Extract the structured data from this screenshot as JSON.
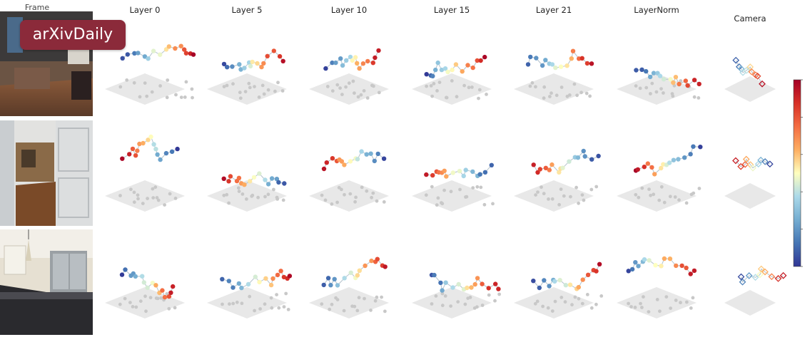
{
  "header": {
    "frame_label": "Frame",
    "column_titles": [
      "Layer 0",
      "Layer 5",
      "Layer 10",
      "Layer 15",
      "Layer 21",
      "LayerNorm",
      "Camera"
    ]
  },
  "badge": {
    "text": "arXivDaily"
  },
  "rows": [
    {
      "scene": "living-room"
    },
    {
      "scene": "hallway"
    },
    {
      "scene": "kitchen"
    }
  ],
  "colormap": {
    "stops": [
      "#313695",
      "#4575b4",
      "#74add1",
      "#abd9e9",
      "#ffffbf",
      "#fdae61",
      "#f46d43",
      "#d73027",
      "#a50026"
    ]
  },
  "colors": {
    "plane": "#e8e8e8",
    "shadow_point": "#c8c8c8",
    "trajectory_line": "#b4c2cc"
  }
}
